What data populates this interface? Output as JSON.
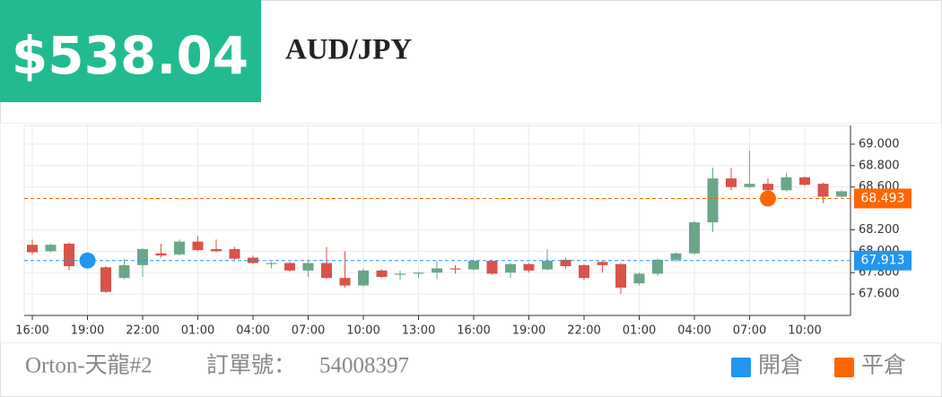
{
  "header": {
    "amount": "$538.04",
    "symbol": "AUD/JPY"
  },
  "footer": {
    "account": "Orton-天龍#2",
    "order_label": "訂單號：",
    "order_number": "54008397"
  },
  "chart_data": {
    "type": "candlestick",
    "categories": [
      "16:00",
      null,
      null,
      "19:00",
      null,
      null,
      "22:00",
      null,
      null,
      "01:00",
      null,
      null,
      "04:00",
      null,
      null,
      "07:00",
      null,
      null,
      "10:00",
      null,
      null,
      "13:00",
      null,
      null,
      "16:00",
      null,
      null,
      "19:00",
      null,
      null,
      "22:00",
      null,
      null,
      "01:00",
      null,
      null,
      "04:00",
      null,
      null,
      "07:00",
      null,
      null,
      "10:00",
      null,
      null
    ],
    "open": [
      68.06,
      68.0,
      68.07,
      67.88,
      67.85,
      67.75,
      67.87,
      67.98,
      67.97,
      68.09,
      68.02,
      68.02,
      67.94,
      67.88,
      67.89,
      67.82,
      67.89,
      67.75,
      67.68,
      67.82,
      67.78,
      67.79,
      67.8,
      67.84,
      67.83,
      67.91,
      67.8,
      67.88,
      67.83,
      67.92,
      67.87,
      67.9,
      67.88,
      67.7,
      67.79,
      67.92,
      67.98,
      68.27,
      68.68,
      68.6,
      68.63,
      68.57,
      68.69,
      68.63,
      68.51
    ],
    "high": [
      68.11,
      68.07,
      68.08,
      67.93,
      67.86,
      67.93,
      68.03,
      68.07,
      68.11,
      68.14,
      68.11,
      68.04,
      67.96,
      67.9,
      67.9,
      67.91,
      68.04,
      68.0,
      67.84,
      67.83,
      67.82,
      67.81,
      67.91,
      67.87,
      67.92,
      67.92,
      67.89,
      67.89,
      68.02,
      67.94,
      67.88,
      67.91,
      67.89,
      67.8,
      67.93,
      67.99,
      68.28,
      68.78,
      68.78,
      68.94,
      68.68,
      68.73,
      68.7,
      68.64,
      68.57
    ],
    "low": [
      67.97,
      67.99,
      67.82,
      67.86,
      67.61,
      67.74,
      67.76,
      67.94,
      67.96,
      68.0,
      67.99,
      67.92,
      67.88,
      67.84,
      67.81,
      67.76,
      67.74,
      67.66,
      67.67,
      67.75,
      67.73,
      67.75,
      67.74,
      67.79,
      67.82,
      67.78,
      67.75,
      67.8,
      67.82,
      67.84,
      67.73,
      67.8,
      67.6,
      67.68,
      67.77,
      67.9,
      67.97,
      68.18,
      68.57,
      68.59,
      68.49,
      68.56,
      68.61,
      68.45,
      68.5
    ],
    "close": [
      67.99,
      68.06,
      67.86,
      67.91,
      67.62,
      67.87,
      68.02,
      67.96,
      68.09,
      68.01,
      68.0,
      67.93,
      67.89,
      67.89,
      67.82,
      67.89,
      67.75,
      67.68,
      67.82,
      67.76,
      67.79,
      67.8,
      67.84,
      67.83,
      67.91,
      67.79,
      67.88,
      67.82,
      67.91,
      67.86,
      67.75,
      67.87,
      67.66,
      67.79,
      67.92,
      67.98,
      68.27,
      68.68,
      68.6,
      68.63,
      68.57,
      68.69,
      68.62,
      68.51,
      68.56
    ],
    "up_color": "#6aa688",
    "down_color": "#d9534a",
    "lines": [
      {
        "name": "開倉",
        "value": 67.913,
        "color": "#2196f3",
        "index": 3
      },
      {
        "name": "平倉",
        "value": 68.493,
        "color": "#ff6600",
        "index": 40
      }
    ],
    "ylim": [
      67.4,
      69.175
    ],
    "yticks": [
      {
        "value": 67.6,
        "label": "67.600"
      },
      {
        "value": 67.8,
        "label": "67.800"
      },
      {
        "value": 68,
        "label": "68.000"
      },
      {
        "value": 68.2,
        "label": "68.200"
      },
      {
        "value": 68.6,
        "label": "68.600"
      },
      {
        "value": 68.8,
        "label": "68.800"
      },
      {
        "value": 69,
        "label": "69.000"
      }
    ],
    "grid": true
  }
}
